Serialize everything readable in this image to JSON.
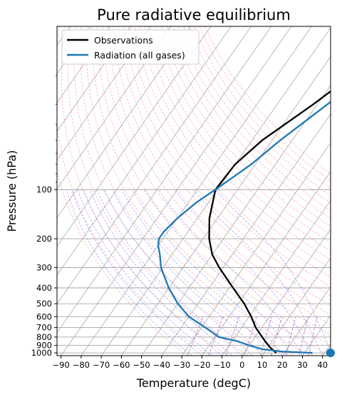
{
  "chart_data": {
    "type": "line",
    "subtype": "skew-T log-P diagram",
    "title": "Pure radiative equilibrium",
    "xlabel": "Temperature (degC)",
    "ylabel": "Pressure (hPa)",
    "xlim": [
      -92,
      44
    ],
    "ylim_hpa": [
      1040,
      10
    ],
    "y_scale": "log (inverted)",
    "x_ticks": [
      -90,
      -80,
      -70,
      -60,
      -50,
      -40,
      -30,
      -20,
      -10,
      0,
      10,
      20,
      30,
      40
    ],
    "y_ticks": [
      100,
      200,
      300,
      400,
      500,
      600,
      700,
      800,
      900,
      1000
    ],
    "legend": {
      "placement": "top-left",
      "entries": [
        "Observations",
        "Radiation (all gases)"
      ]
    },
    "series": [
      {
        "name": "Observations",
        "color": "#000000",
        "points": [
          {
            "p": 1000,
            "t": 16
          },
          {
            "p": 925,
            "t": 11
          },
          {
            "p": 850,
            "t": 6.5
          },
          {
            "p": 700,
            "t": -3
          },
          {
            "p": 600,
            "t": -9
          },
          {
            "p": 500,
            "t": -17
          },
          {
            "p": 400,
            "t": -28
          },
          {
            "p": 300,
            "t": -42
          },
          {
            "p": 250,
            "t": -50
          },
          {
            "p": 200,
            "t": -57
          },
          {
            "p": 150,
            "t": -64
          },
          {
            "p": 100,
            "t": -71
          },
          {
            "p": 70,
            "t": -70
          },
          {
            "p": 50,
            "t": -65
          },
          {
            "p": 30,
            "t": -52
          },
          {
            "p": 20,
            "t": -43
          },
          {
            "p": 10,
            "t": -28
          }
        ]
      },
      {
        "name": "Radiation (all gases)",
        "color": "#1f77b4",
        "points": [
          {
            "p": 1000,
            "t": 34
          },
          {
            "p": 980,
            "t": 18
          },
          {
            "p": 950,
            "t": 8
          },
          {
            "p": 900,
            "t": 0
          },
          {
            "p": 850,
            "t": -7
          },
          {
            "p": 800,
            "t": -18
          },
          {
            "p": 700,
            "t": -28
          },
          {
            "p": 600,
            "t": -40
          },
          {
            "p": 500,
            "t": -50
          },
          {
            "p": 400,
            "t": -60
          },
          {
            "p": 300,
            "t": -71
          },
          {
            "p": 250,
            "t": -76
          },
          {
            "p": 220,
            "t": -80
          },
          {
            "p": 200,
            "t": -82
          },
          {
            "p": 180,
            "t": -82
          },
          {
            "p": 150,
            "t": -80
          },
          {
            "p": 120,
            "t": -76
          },
          {
            "p": 100,
            "t": -71
          },
          {
            "p": 70,
            "t": -62
          },
          {
            "p": 50,
            "t": -56
          },
          {
            "p": 30,
            "t": -45
          },
          {
            "p": 20,
            "t": -37
          },
          {
            "p": 10,
            "t": -24
          }
        ]
      }
    ],
    "surface_point": {
      "p": 1000,
      "t": 43,
      "color": "#1f77b4"
    },
    "background_lines": {
      "isotherms_color": "#aaaaaa",
      "dry_adiabats_color": "#ff8080",
      "moist_adiabats_color": "#6060ff",
      "mixing_ratio_color": "#9040a0"
    }
  }
}
